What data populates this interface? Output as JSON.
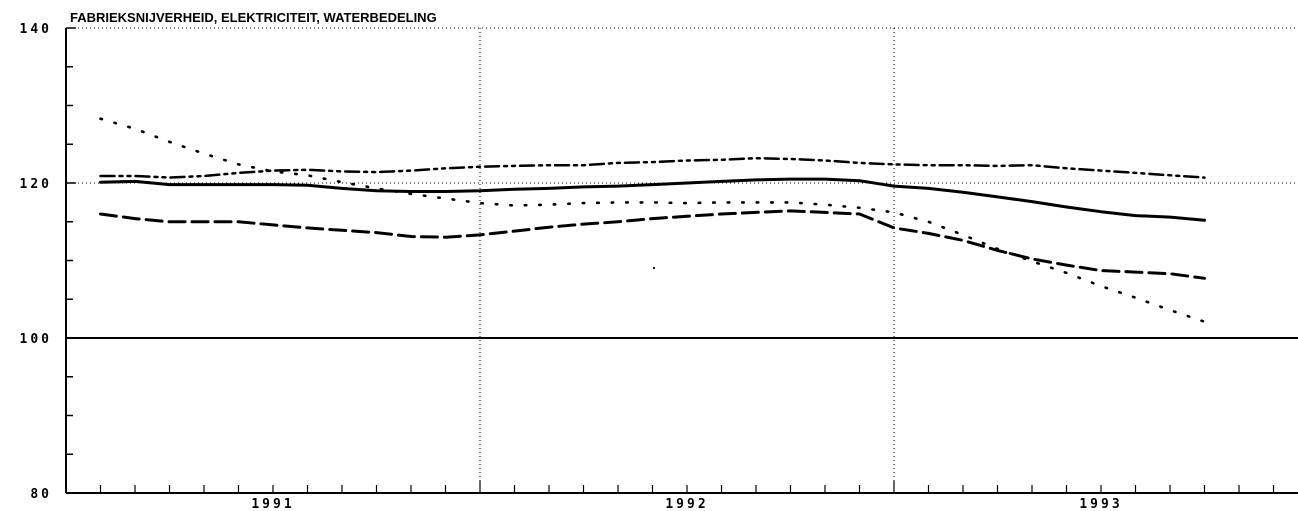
{
  "chart_data": {
    "type": "line",
    "title": "FABRIEKSNIJVERHEID, ELEKTRICITEIT, WATERBEDELING",
    "xlabel": "",
    "ylabel": "",
    "ylim": [
      80,
      140
    ],
    "yticks": [
      80,
      100,
      120,
      140
    ],
    "year_labels": [
      "1991",
      "1992",
      "1993"
    ],
    "xlim": [
      0,
      36
    ],
    "year_centers": [
      6,
      18,
      30
    ],
    "year_boundaries": [
      12,
      24
    ],
    "reference_line": 100,
    "grid": "dotted vertical at year boundaries; dotted horizontal at 120 and 140",
    "legend": "none",
    "series": [
      {
        "style": "solid",
        "x": [
          1,
          2,
          3,
          4,
          5,
          6,
          7,
          8,
          9,
          10,
          11,
          12,
          13,
          14,
          15,
          16,
          17,
          18,
          19,
          20,
          21,
          22,
          23,
          24,
          25,
          26,
          27,
          28,
          29,
          30,
          31,
          32,
          33
        ],
        "values": [
          120.1,
          120.2,
          119.8,
          119.8,
          119.8,
          119.8,
          119.7,
          119.3,
          119.0,
          118.9,
          118.9,
          119.0,
          119.2,
          119.3,
          119.5,
          119.6,
          119.8,
          120.0,
          120.2,
          120.4,
          120.5,
          120.5,
          120.3,
          119.6,
          119.3,
          118.8,
          118.2,
          117.6,
          116.9,
          116.3,
          115.8,
          115.6,
          115.2
        ]
      },
      {
        "style": "dash-dot-dot",
        "x": [
          1,
          2,
          3,
          4,
          5,
          6,
          7,
          8,
          9,
          10,
          11,
          12,
          13,
          14,
          15,
          16,
          17,
          18,
          19,
          20,
          21,
          22,
          23,
          24,
          25,
          26,
          27,
          28,
          29,
          30,
          31,
          32,
          33
        ],
        "values": [
          120.9,
          120.9,
          120.7,
          120.9,
          121.3,
          121.6,
          121.7,
          121.5,
          121.4,
          121.6,
          121.9,
          122.1,
          122.2,
          122.3,
          122.3,
          122.6,
          122.7,
          122.9,
          123.0,
          123.2,
          123.1,
          122.9,
          122.6,
          122.4,
          122.3,
          122.3,
          122.2,
          122.3,
          121.9,
          121.6,
          121.3,
          121.0,
          120.7
        ]
      },
      {
        "style": "dashed",
        "x": [
          1,
          2,
          3,
          4,
          5,
          6,
          7,
          8,
          9,
          10,
          11,
          12,
          13,
          14,
          15,
          16,
          17,
          18,
          19,
          20,
          21,
          22,
          23,
          24,
          25,
          26,
          27,
          28,
          29,
          30,
          31,
          32,
          33
        ],
        "values": [
          116.0,
          115.4,
          115.0,
          115.0,
          115.0,
          114.6,
          114.2,
          113.9,
          113.6,
          113.1,
          113.0,
          113.3,
          113.8,
          114.3,
          114.7,
          115.0,
          115.4,
          115.7,
          116.0,
          116.2,
          116.4,
          116.2,
          116.0,
          114.2,
          113.5,
          112.6,
          111.3,
          110.2,
          109.4,
          108.7,
          108.5,
          108.3,
          107.7
        ]
      },
      {
        "style": "dotted",
        "x": [
          1,
          2,
          3,
          4,
          5,
          6,
          7,
          8,
          9,
          10,
          11,
          12,
          13,
          14,
          15,
          16,
          17,
          18,
          19,
          20,
          21,
          22,
          23,
          24,
          25,
          26,
          27,
          28,
          29,
          30,
          31,
          32,
          33
        ],
        "values": [
          128.3,
          127.0,
          125.3,
          123.8,
          122.4,
          121.5,
          121.0,
          120.1,
          119.3,
          118.6,
          118.0,
          117.4,
          117.1,
          117.2,
          117.4,
          117.5,
          117.5,
          117.4,
          117.5,
          117.5,
          117.5,
          117.2,
          116.8,
          116.2,
          115.0,
          113.3,
          111.5,
          109.9,
          108.4,
          106.7,
          105.2,
          103.6,
          102.1
        ]
      }
    ]
  }
}
